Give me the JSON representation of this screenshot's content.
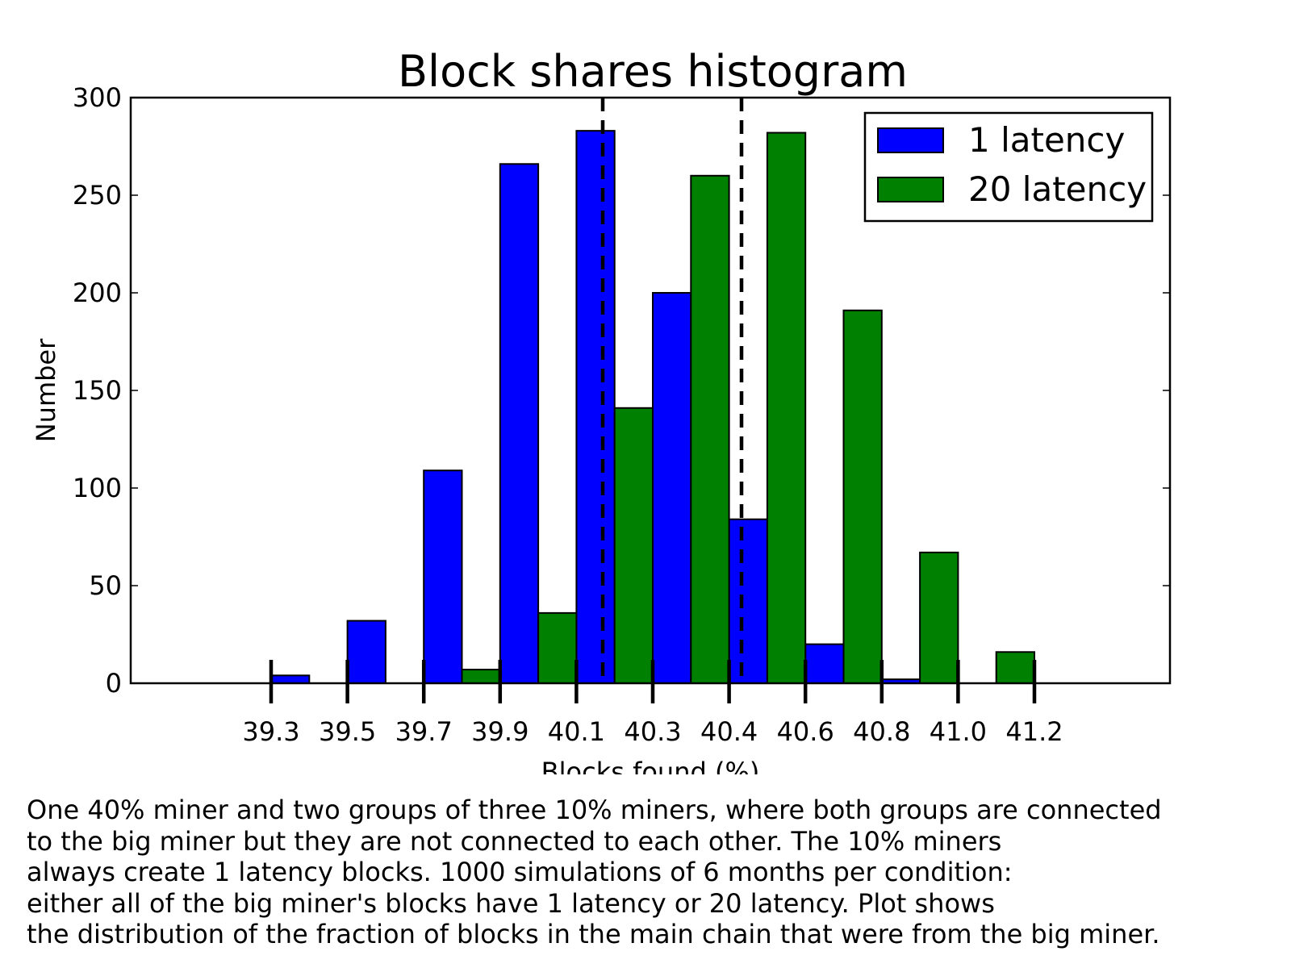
{
  "chart_data": {
    "type": "bar",
    "title": "Block shares histogram",
    "xlabel": "Blocks found (%)",
    "ylabel": "Number",
    "ylim": [
      0,
      300
    ],
    "yticks": [
      "0",
      "50",
      "100",
      "150",
      "200",
      "250",
      "300"
    ],
    "xticks": [
      "39.3",
      "39.5",
      "39.7",
      "39.9",
      "40.1",
      "40.3",
      "40.4",
      "40.6",
      "40.8",
      "41.0",
      "41.2"
    ],
    "grid": false,
    "legend_position": "top-right",
    "series": [
      {
        "name": "1 latency",
        "color": "#0000ff",
        "values": [
          4,
          32,
          109,
          266,
          283,
          200,
          84,
          20,
          2,
          0,
          0
        ]
      },
      {
        "name": "20 latency",
        "color": "#008000",
        "values": [
          0,
          0,
          7,
          36,
          141,
          260,
          282,
          191,
          67,
          16,
          0
        ]
      }
    ],
    "reference_lines": {
      "style": "dashed",
      "color": "#000000"
    }
  },
  "caption": [
    "One 40% miner and two groups of three 10% miners, where both groups are connected",
    "to the big miner but they are not connected to each other. The 10% miners",
    "always create 1 latency blocks. 1000 simulations of 6 months per condition:",
    "either all of the big miner's blocks have 1 latency or 20 latency. Plot shows",
    "the distribution of the fraction of blocks in the main chain that were from the big miner."
  ]
}
